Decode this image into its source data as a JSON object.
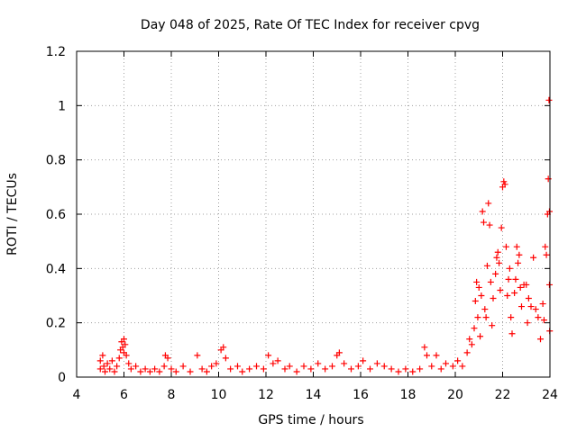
{
  "chart_data": {
    "type": "scatter",
    "title": "Day 048 of 2025, Rate Of TEC Index for receiver cpvg",
    "xlabel": "GPS time / hours",
    "ylabel": "ROTI / TECUs",
    "xlim": [
      4,
      24
    ],
    "ylim": [
      0,
      1.2
    ],
    "x_ticks": [
      4,
      6,
      8,
      10,
      12,
      14,
      16,
      18,
      20,
      22,
      24
    ],
    "x_tick_labels": [
      "4",
      "6",
      "8",
      "10",
      "12",
      "14",
      "16",
      "18",
      "20",
      "22",
      "24"
    ],
    "y_ticks": [
      0,
      0.2,
      0.4,
      0.6,
      0.8,
      1.0,
      1.2
    ],
    "y_tick_labels": [
      "0",
      "0.2",
      "0.4",
      "0.6",
      "0.8",
      "1",
      "1.2"
    ],
    "grid": true,
    "marker": "+",
    "color": "#ff0000",
    "series": [
      {
        "name": "ROTI",
        "points": [
          [
            5.0,
            0.03
          ],
          [
            5.0,
            0.06
          ],
          [
            5.1,
            0.08
          ],
          [
            5.15,
            0.04
          ],
          [
            5.2,
            0.02
          ],
          [
            5.3,
            0.05
          ],
          [
            5.4,
            0.03
          ],
          [
            5.5,
            0.06
          ],
          [
            5.6,
            0.02
          ],
          [
            5.7,
            0.04
          ],
          [
            5.8,
            0.07
          ],
          [
            5.85,
            0.1
          ],
          [
            5.9,
            0.13
          ],
          [
            5.95,
            0.11
          ],
          [
            6.0,
            0.14
          ],
          [
            6.0,
            0.09
          ],
          [
            6.05,
            0.12
          ],
          [
            6.1,
            0.08
          ],
          [
            6.2,
            0.05
          ],
          [
            6.3,
            0.03
          ],
          [
            6.5,
            0.04
          ],
          [
            6.7,
            0.02
          ],
          [
            6.9,
            0.03
          ],
          [
            7.1,
            0.02
          ],
          [
            7.3,
            0.03
          ],
          [
            7.5,
            0.02
          ],
          [
            7.7,
            0.04
          ],
          [
            7.75,
            0.08
          ],
          [
            7.85,
            0.07
          ],
          [
            8.0,
            0.03
          ],
          [
            8.2,
            0.02
          ],
          [
            8.5,
            0.04
          ],
          [
            8.8,
            0.02
          ],
          [
            9.1,
            0.08
          ],
          [
            9.3,
            0.03
          ],
          [
            9.5,
            0.02
          ],
          [
            9.7,
            0.04
          ],
          [
            9.9,
            0.05
          ],
          [
            10.1,
            0.1
          ],
          [
            10.2,
            0.11
          ],
          [
            10.3,
            0.07
          ],
          [
            10.5,
            0.03
          ],
          [
            10.8,
            0.04
          ],
          [
            11.0,
            0.02
          ],
          [
            11.3,
            0.03
          ],
          [
            11.6,
            0.04
          ],
          [
            11.9,
            0.03
          ],
          [
            12.1,
            0.08
          ],
          [
            12.3,
            0.05
          ],
          [
            12.5,
            0.06
          ],
          [
            12.8,
            0.03
          ],
          [
            13.0,
            0.04
          ],
          [
            13.3,
            0.02
          ],
          [
            13.6,
            0.04
          ],
          [
            13.9,
            0.03
          ],
          [
            14.2,
            0.05
          ],
          [
            14.5,
            0.03
          ],
          [
            14.8,
            0.04
          ],
          [
            15.0,
            0.08
          ],
          [
            15.1,
            0.09
          ],
          [
            15.3,
            0.05
          ],
          [
            15.6,
            0.03
          ],
          [
            15.9,
            0.04
          ],
          [
            16.1,
            0.06
          ],
          [
            16.4,
            0.03
          ],
          [
            16.7,
            0.05
          ],
          [
            17.0,
            0.04
          ],
          [
            17.3,
            0.03
          ],
          [
            17.6,
            0.02
          ],
          [
            17.9,
            0.03
          ],
          [
            18.2,
            0.02
          ],
          [
            18.5,
            0.03
          ],
          [
            18.7,
            0.11
          ],
          [
            18.8,
            0.08
          ],
          [
            19.0,
            0.04
          ],
          [
            19.2,
            0.08
          ],
          [
            19.4,
            0.03
          ],
          [
            19.6,
            0.05
          ],
          [
            19.9,
            0.04
          ],
          [
            20.1,
            0.06
          ],
          [
            20.3,
            0.04
          ],
          [
            20.5,
            0.09
          ],
          [
            20.6,
            0.14
          ],
          [
            20.7,
            0.12
          ],
          [
            20.8,
            0.18
          ],
          [
            20.85,
            0.28
          ],
          [
            20.9,
            0.35
          ],
          [
            20.95,
            0.22
          ],
          [
            21.0,
            0.33
          ],
          [
            21.05,
            0.15
          ],
          [
            21.1,
            0.3
          ],
          [
            21.15,
            0.61
          ],
          [
            21.2,
            0.57
          ],
          [
            21.25,
            0.25
          ],
          [
            21.3,
            0.22
          ],
          [
            21.35,
            0.41
          ],
          [
            21.4,
            0.64
          ],
          [
            21.45,
            0.56
          ],
          [
            21.5,
            0.35
          ],
          [
            21.55,
            0.19
          ],
          [
            21.6,
            0.29
          ],
          [
            21.7,
            0.38
          ],
          [
            21.75,
            0.44
          ],
          [
            21.8,
            0.46
          ],
          [
            21.85,
            0.42
          ],
          [
            21.9,
            0.32
          ],
          [
            21.95,
            0.55
          ],
          [
            22.0,
            0.7
          ],
          [
            22.05,
            0.72
          ],
          [
            22.1,
            0.71
          ],
          [
            22.15,
            0.48
          ],
          [
            22.2,
            0.3
          ],
          [
            22.25,
            0.36
          ],
          [
            22.3,
            0.4
          ],
          [
            22.35,
            0.22
          ],
          [
            22.4,
            0.16
          ],
          [
            22.5,
            0.31
          ],
          [
            22.55,
            0.36
          ],
          [
            22.6,
            0.48
          ],
          [
            22.65,
            0.42
          ],
          [
            22.7,
            0.45
          ],
          [
            22.75,
            0.33
          ],
          [
            22.8,
            0.26
          ],
          [
            22.9,
            0.34
          ],
          [
            23.0,
            0.34
          ],
          [
            23.05,
            0.2
          ],
          [
            23.1,
            0.29
          ],
          [
            23.2,
            0.26
          ],
          [
            23.3,
            0.44
          ],
          [
            23.4,
            0.25
          ],
          [
            23.5,
            0.22
          ],
          [
            23.6,
            0.14
          ],
          [
            23.7,
            0.27
          ],
          [
            23.75,
            0.21
          ],
          [
            23.8,
            0.48
          ],
          [
            23.85,
            0.45
          ],
          [
            23.9,
            0.6
          ],
          [
            23.93,
            0.73
          ],
          [
            23.96,
            1.02
          ],
          [
            23.98,
            0.61
          ],
          [
            23.98,
            0.34
          ],
          [
            23.99,
            0.17
          ]
        ]
      }
    ]
  }
}
